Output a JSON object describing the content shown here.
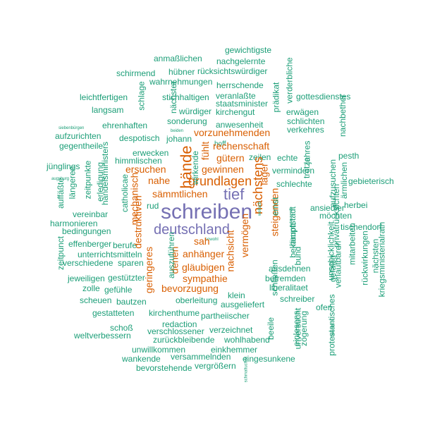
{
  "colors": {
    "purple": "#7570b3",
    "orange": "#d95f02",
    "teal": "#1b9e77"
  },
  "words": [
    {
      "text": "gewichtigste",
      "color": "teal"
    },
    {
      "text": "nachgelernte",
      "color": "teal"
    },
    {
      "text": "anmaßlichen",
      "color": "teal"
    },
    {
      "text": "schirmend",
      "color": "teal"
    },
    {
      "text": "hübner",
      "color": "teal"
    },
    {
      "text": "rücksichtswürdiger",
      "color": "teal"
    },
    {
      "text": "wahrnehmungen",
      "color": "teal"
    },
    {
      "text": "herrschende",
      "color": "teal"
    },
    {
      "text": "leichtfertigen",
      "color": "teal"
    },
    {
      "text": "stichhaltigen",
      "color": "teal"
    },
    {
      "text": "veranlaßte",
      "color": "teal"
    },
    {
      "text": "gottesdienstes",
      "color": "teal"
    },
    {
      "text": "staatsminister",
      "color": "teal"
    },
    {
      "text": "langsam",
      "color": "teal"
    },
    {
      "text": "würdiger",
      "color": "teal"
    },
    {
      "text": "kirchengut",
      "color": "teal"
    },
    {
      "text": "erwägen",
      "color": "teal"
    },
    {
      "text": "sonderung",
      "color": "teal"
    },
    {
      "text": "schlichten",
      "color": "teal"
    },
    {
      "text": "ehrenhaften",
      "color": "teal"
    },
    {
      "text": "anwesenheit",
      "color": "teal"
    },
    {
      "text": "verkehres",
      "color": "teal"
    },
    {
      "text": "siebenbürgen",
      "color": "teal"
    },
    {
      "text": "beiden",
      "color": "teal"
    },
    {
      "text": "aufzurichten",
      "color": "teal"
    },
    {
      "text": "despotisch",
      "color": "teal"
    },
    {
      "text": "johann",
      "color": "teal"
    },
    {
      "text": "gegentheile",
      "color": "teal"
    },
    {
      "text": "hoff",
      "color": "teal"
    },
    {
      "text": "erwecken",
      "color": "teal"
    },
    {
      "text": "zeilen",
      "color": "teal"
    },
    {
      "text": "echte",
      "color": "teal"
    },
    {
      "text": "pesth",
      "color": "teal"
    },
    {
      "text": "himmlischen",
      "color": "teal"
    },
    {
      "text": "jünglings",
      "color": "teal"
    },
    {
      "text": "vermindern",
      "color": "teal"
    },
    {
      "text": "schlechte",
      "color": "teal"
    },
    {
      "text": "gebieterisch",
      "color": "teal"
    },
    {
      "text": "augsburg",
      "color": "teal"
    },
    {
      "text": "rud",
      "color": "teal"
    },
    {
      "text": "ansiedler",
      "color": "teal"
    },
    {
      "text": "herbei",
      "color": "teal"
    },
    {
      "text": "vereinbar",
      "color": "teal"
    },
    {
      "text": "möchten",
      "color": "teal"
    },
    {
      "text": "harmonieren",
      "color": "teal"
    },
    {
      "text": "tischendorf",
      "color": "teal"
    },
    {
      "text": "bedingungen",
      "color": "teal"
    },
    {
      "text": "effenberger",
      "color": "teal"
    },
    {
      "text": "berufe",
      "color": "teal"
    },
    {
      "text": "sowohl",
      "color": "teal"
    },
    {
      "text": "unterrichtsmitteln",
      "color": "teal"
    },
    {
      "text": "verschiedene",
      "color": "teal"
    },
    {
      "text": "sparen",
      "color": "teal"
    },
    {
      "text": "ausdehnen",
      "color": "teal"
    },
    {
      "text": "befremden",
      "color": "teal"
    },
    {
      "text": "jeweiligen",
      "color": "teal"
    },
    {
      "text": "gestützter",
      "color": "teal"
    },
    {
      "text": "liberalitaet",
      "color": "teal"
    },
    {
      "text": "zolle",
      "color": "teal"
    },
    {
      "text": "gefühle",
      "color": "teal"
    },
    {
      "text": "klein",
      "color": "teal"
    },
    {
      "text": "scheuen",
      "color": "teal"
    },
    {
      "text": "bautzen",
      "color": "teal"
    },
    {
      "text": "oberleitung",
      "color": "teal"
    },
    {
      "text": "ausgeliefert",
      "color": "teal"
    },
    {
      "text": "schreiber",
      "color": "teal"
    },
    {
      "text": "ofen",
      "color": "teal"
    },
    {
      "text": "gestatteten",
      "color": "teal"
    },
    {
      "text": "kirchenthume",
      "color": "teal"
    },
    {
      "text": "partheiischer",
      "color": "teal"
    },
    {
      "text": "redaction",
      "color": "teal"
    },
    {
      "text": "schoß",
      "color": "teal"
    },
    {
      "text": "verschlossener",
      "color": "teal"
    },
    {
      "text": "verzeichnet",
      "color": "teal"
    },
    {
      "text": "weltverbessern",
      "color": "teal"
    },
    {
      "text": "zurückbleibende",
      "color": "teal"
    },
    {
      "text": "wohlhabend",
      "color": "teal"
    },
    {
      "text": "unwillkommen",
      "color": "teal"
    },
    {
      "text": "einkhemmer",
      "color": "teal"
    },
    {
      "text": "wankende",
      "color": "teal"
    },
    {
      "text": "versammelnden",
      "color": "teal"
    },
    {
      "text": "eingesunkene",
      "color": "teal"
    },
    {
      "text": "bevorstehende",
      "color": "teal"
    },
    {
      "text": "vergrößern",
      "color": "teal"
    },
    {
      "text": "schreiben",
      "color": "purple"
    },
    {
      "text": "deutschland",
      "color": "purple"
    },
    {
      "text": "tief",
      "color": "purple"
    },
    {
      "text": "hände",
      "color": "orange"
    },
    {
      "text": "nächstens",
      "color": "orange"
    },
    {
      "text": "grundlagen",
      "color": "orange"
    },
    {
      "text": "vorzunehmenden",
      "color": "orange"
    },
    {
      "text": "rechenschaft",
      "color": "orange"
    },
    {
      "text": "gütern",
      "color": "orange"
    },
    {
      "text": "ersuchen",
      "color": "orange"
    },
    {
      "text": "gewinnen",
      "color": "orange"
    },
    {
      "text": "nahe",
      "color": "orange"
    },
    {
      "text": "sämmtlichen",
      "color": "orange"
    },
    {
      "text": "anhänger",
      "color": "orange"
    },
    {
      "text": "sah",
      "color": "orange"
    },
    {
      "text": "gläubigen",
      "color": "orange"
    },
    {
      "text": "sympathie",
      "color": "orange"
    },
    {
      "text": "bevorzugung",
      "color": "orange"
    },
    {
      "text": "lager",
      "color": "orange"
    },
    {
      "text": "steigenden",
      "color": "orange"
    },
    {
      "text": "vermögen",
      "color": "orange"
    },
    {
      "text": "nachsicht",
      "color": "orange"
    },
    {
      "text": "geringeres",
      "color": "orange"
    },
    {
      "text": "denen",
      "color": "orange"
    },
    {
      "text": "destruktiven",
      "color": "orange"
    },
    {
      "text": "mechanisch",
      "color": "orange"
    },
    {
      "text": "fühlt",
      "color": "orange"
    },
    {
      "text": "schlage",
      "color": "teal"
    },
    {
      "text": "nächster",
      "color": "teal"
    },
    {
      "text": "prädikat",
      "color": "teal"
    },
    {
      "text": "verderbliche",
      "color": "teal"
    },
    {
      "text": "nachbether",
      "color": "teal"
    },
    {
      "text": "handelsministers",
      "color": "teal"
    },
    {
      "text": "erledigung",
      "color": "teal"
    },
    {
      "text": "zeitpunkte",
      "color": "teal"
    },
    {
      "text": "längeren",
      "color": "teal"
    },
    {
      "text": "auffäßte",
      "color": "teal"
    },
    {
      "text": "zeitpunct",
      "color": "teal"
    },
    {
      "text": "catholicae",
      "color": "teal"
    },
    {
      "text": "auszuführen",
      "color": "teal"
    },
    {
      "text": "wirkende",
      "color": "teal"
    },
    {
      "text": "jahres",
      "color": "teal"
    },
    {
      "text": "trotze",
      "color": "teal"
    },
    {
      "text": "aufzusuchen",
      "color": "teal"
    },
    {
      "text": "ärmlichen",
      "color": "teal"
    },
    {
      "text": "bekämpft",
      "color": "teal"
    },
    {
      "text": "ernst",
      "color": "teal"
    },
    {
      "text": "hauptstadt",
      "color": "teal"
    },
    {
      "text": "privatrücksichten",
      "color": "teal"
    },
    {
      "text": "bund",
      "color": "teal"
    },
    {
      "text": "unschicklichkeit",
      "color": "teal"
    },
    {
      "text": "verlautbaren",
      "color": "teal"
    },
    {
      "text": "gefällig",
      "color": "teal"
    },
    {
      "text": "mitarbeiten",
      "color": "teal"
    },
    {
      "text": "kriegsministerialrath",
      "color": "teal"
    },
    {
      "text": "rückwirkungen",
      "color": "teal"
    },
    {
      "text": "nächsten",
      "color": "teal"
    },
    {
      "text": "schließen",
      "color": "teal"
    },
    {
      "text": "beeile",
      "color": "teal"
    },
    {
      "text": "einlesens",
      "color": "teal"
    },
    {
      "text": "unversucht",
      "color": "teal"
    },
    {
      "text": "zögerung",
      "color": "teal"
    },
    {
      "text": "protestantisches",
      "color": "teal"
    },
    {
      "text": "lateinisch",
      "color": "teal"
    },
    {
      "text": "schmaltuches",
      "color": "teal"
    },
    {
      "text": "wellach",
      "color": "teal"
    },
    {
      "text": "tausend",
      "color": "teal"
    }
  ]
}
